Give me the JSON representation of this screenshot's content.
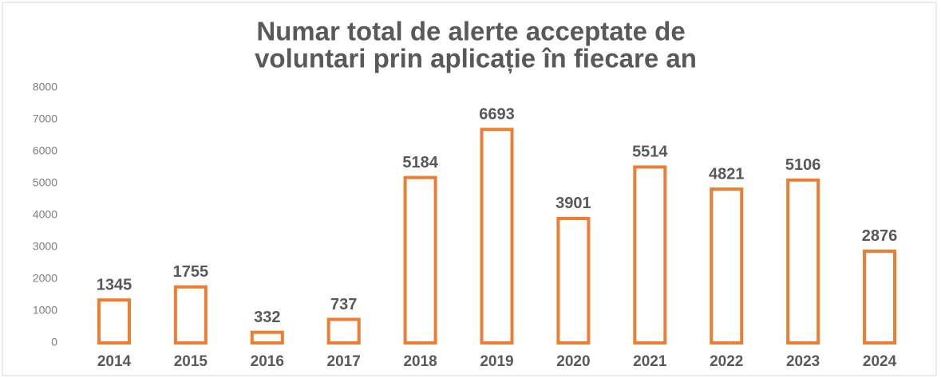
{
  "chart_data": {
    "type": "bar",
    "title": [
      "Numar total de alerte acceptate de",
      "voluntari prin aplicație în fiecare an"
    ],
    "categories": [
      "2014",
      "2015",
      "2016",
      "2017",
      "2018",
      "2019",
      "2020",
      "2021",
      "2022",
      "2023",
      "2024"
    ],
    "values": [
      1345,
      1755,
      332,
      737,
      5184,
      6693,
      3901,
      5514,
      4821,
      5106,
      2876
    ],
    "color": "#ed7d31",
    "fill": "#ffffff",
    "ylim": [
      0,
      8000
    ],
    "yticks": [
      0,
      1000,
      2000,
      3000,
      4000,
      5000,
      6000,
      7000,
      8000
    ],
    "grid": false
  }
}
